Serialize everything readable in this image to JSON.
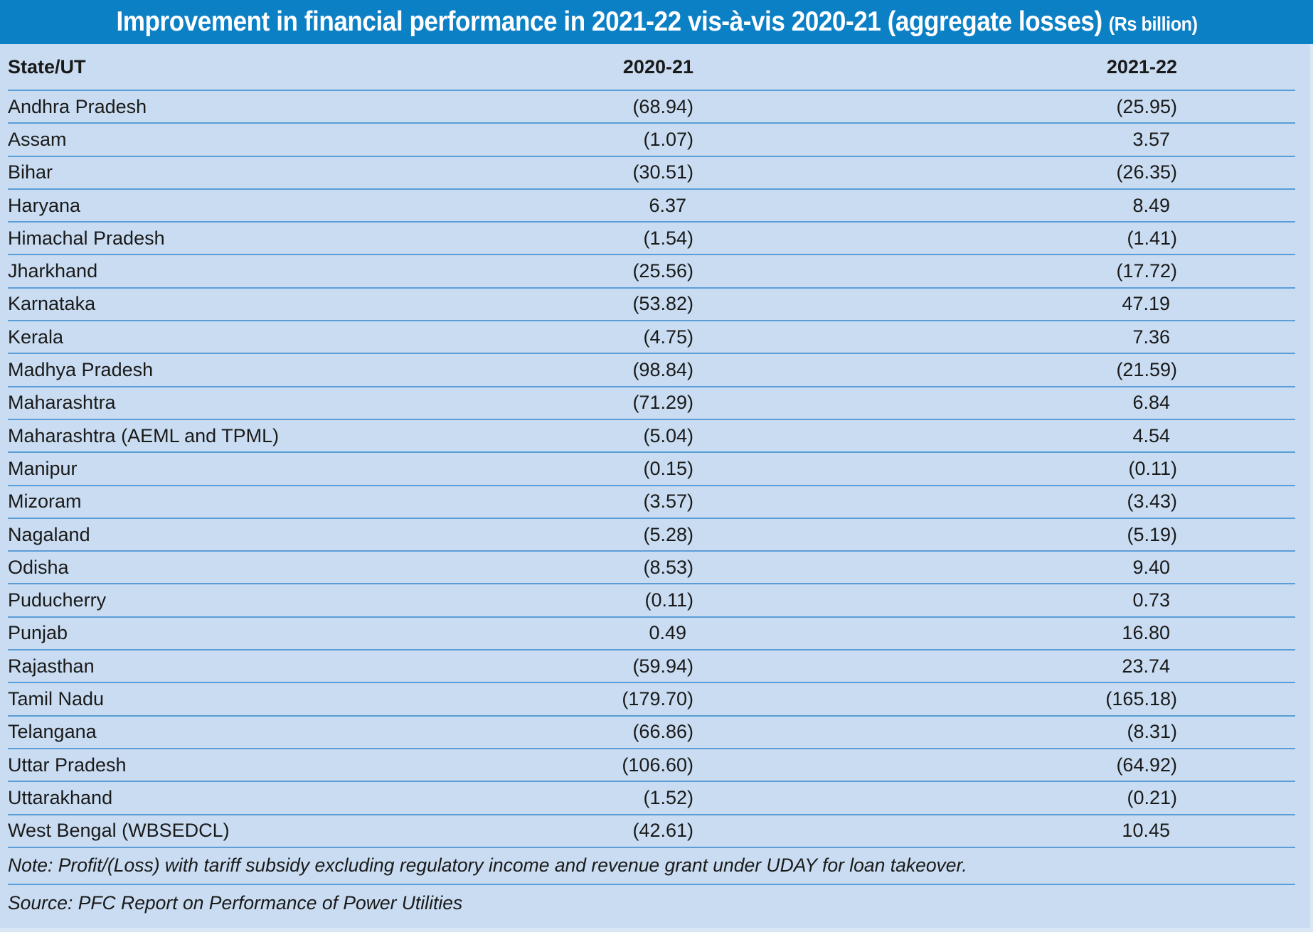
{
  "title": {
    "main": "Improvement in financial performance in 2021-22 vis-à-vis 2020-21 (aggregate losses)",
    "unit": "(Rs billion)"
  },
  "table": {
    "columns": [
      "State/UT",
      "2020-21",
      "2021-22"
    ],
    "rows": [
      {
        "state": "Andhra Pradesh",
        "fy2021": "(68.94)",
        "fy2122": "(25.95)"
      },
      {
        "state": "Assam",
        "fy2021": "(1.07)",
        "fy2122": "3.57"
      },
      {
        "state": "Bihar",
        "fy2021": "(30.51)",
        "fy2122": "(26.35)"
      },
      {
        "state": "Haryana",
        "fy2021": "6.37",
        "fy2122": "8.49"
      },
      {
        "state": "Himachal Pradesh",
        "fy2021": "(1.54)",
        "fy2122": "(1.41)"
      },
      {
        "state": "Jharkhand",
        "fy2021": "(25.56)",
        "fy2122": "(17.72)"
      },
      {
        "state": "Karnataka",
        "fy2021": "(53.82)",
        "fy2122": "47.19"
      },
      {
        "state": "Kerala",
        "fy2021": "(4.75)",
        "fy2122": "7.36"
      },
      {
        "state": "Madhya Pradesh",
        "fy2021": "(98.84)",
        "fy2122": "(21.59)"
      },
      {
        "state": "Maharashtra",
        "fy2021": "(71.29)",
        "fy2122": "6.84"
      },
      {
        "state": "Maharashtra (AEML and TPML)",
        "fy2021": "(5.04)",
        "fy2122": "4.54"
      },
      {
        "state": "Manipur",
        "fy2021": "(0.15)",
        "fy2122": "(0.11)"
      },
      {
        "state": "Mizoram",
        "fy2021": "(3.57)",
        "fy2122": "(3.43)"
      },
      {
        "state": "Nagaland",
        "fy2021": "(5.28)",
        "fy2122": "(5.19)"
      },
      {
        "state": "Odisha",
        "fy2021": "(8.53)",
        "fy2122": "9.40"
      },
      {
        "state": "Puducherry",
        "fy2021": "(0.11)",
        "fy2122": "0.73"
      },
      {
        "state": "Punjab",
        "fy2021": "0.49",
        "fy2122": "16.80"
      },
      {
        "state": "Rajasthan",
        "fy2021": "(59.94)",
        "fy2122": "23.74"
      },
      {
        "state": "Tamil Nadu",
        "fy2021": "(179.70)",
        "fy2122": "(165.18)"
      },
      {
        "state": "Telangana",
        "fy2021": "(66.86)",
        "fy2122": "(8.31)"
      },
      {
        "state": "Uttar Pradesh",
        "fy2021": "(106.60)",
        "fy2122": "(64.92)"
      },
      {
        "state": "Uttarakhand",
        "fy2021": "(1.52)",
        "fy2122": "(0.21)"
      },
      {
        "state": "West Bengal (WBSEDCL)",
        "fy2021": "(42.61)",
        "fy2122": "10.45"
      }
    ]
  },
  "note": "Note: Profit/(Loss) with tariff subsidy excluding regulatory income and revenue grant under UDAY for loan takeover.",
  "source": "Source: PFC Report on Performance of Power Utilities",
  "colors": {
    "banner": "#0c80c5",
    "background": "#c9dcf1",
    "divider": "#5b9dd6",
    "edge": "#dae7f5"
  },
  "chart_data": {
    "type": "table",
    "title": "Improvement in financial performance in 2021-22 vis-à-vis 2020-21 (aggregate losses)",
    "unit": "Rs billion",
    "note_convention": "values in parentheses are losses (negative)",
    "categories": [
      "Andhra Pradesh",
      "Assam",
      "Bihar",
      "Haryana",
      "Himachal Pradesh",
      "Jharkhand",
      "Karnataka",
      "Kerala",
      "Madhya Pradesh",
      "Maharashtra",
      "Maharashtra (AEML and TPML)",
      "Manipur",
      "Mizoram",
      "Nagaland",
      "Odisha",
      "Puducherry",
      "Punjab",
      "Rajasthan",
      "Tamil Nadu",
      "Telangana",
      "Uttar Pradesh",
      "Uttarakhand",
      "West Bengal (WBSEDCL)"
    ],
    "series": [
      {
        "name": "2020-21",
        "values": [
          -68.94,
          -1.07,
          -30.51,
          6.37,
          -1.54,
          -25.56,
          -53.82,
          -4.75,
          -98.84,
          -71.29,
          -5.04,
          -0.15,
          -3.57,
          -5.28,
          -8.53,
          -0.11,
          0.49,
          -59.94,
          -179.7,
          -66.86,
          -106.6,
          -1.52,
          -42.61
        ]
      },
      {
        "name": "2021-22",
        "values": [
          -25.95,
          3.57,
          -26.35,
          8.49,
          -1.41,
          -17.72,
          47.19,
          7.36,
          -21.59,
          6.84,
          4.54,
          -0.11,
          -3.43,
          -5.19,
          9.4,
          0.73,
          16.8,
          23.74,
          -165.18,
          -8.31,
          -64.92,
          -0.21,
          10.45
        ]
      }
    ]
  }
}
